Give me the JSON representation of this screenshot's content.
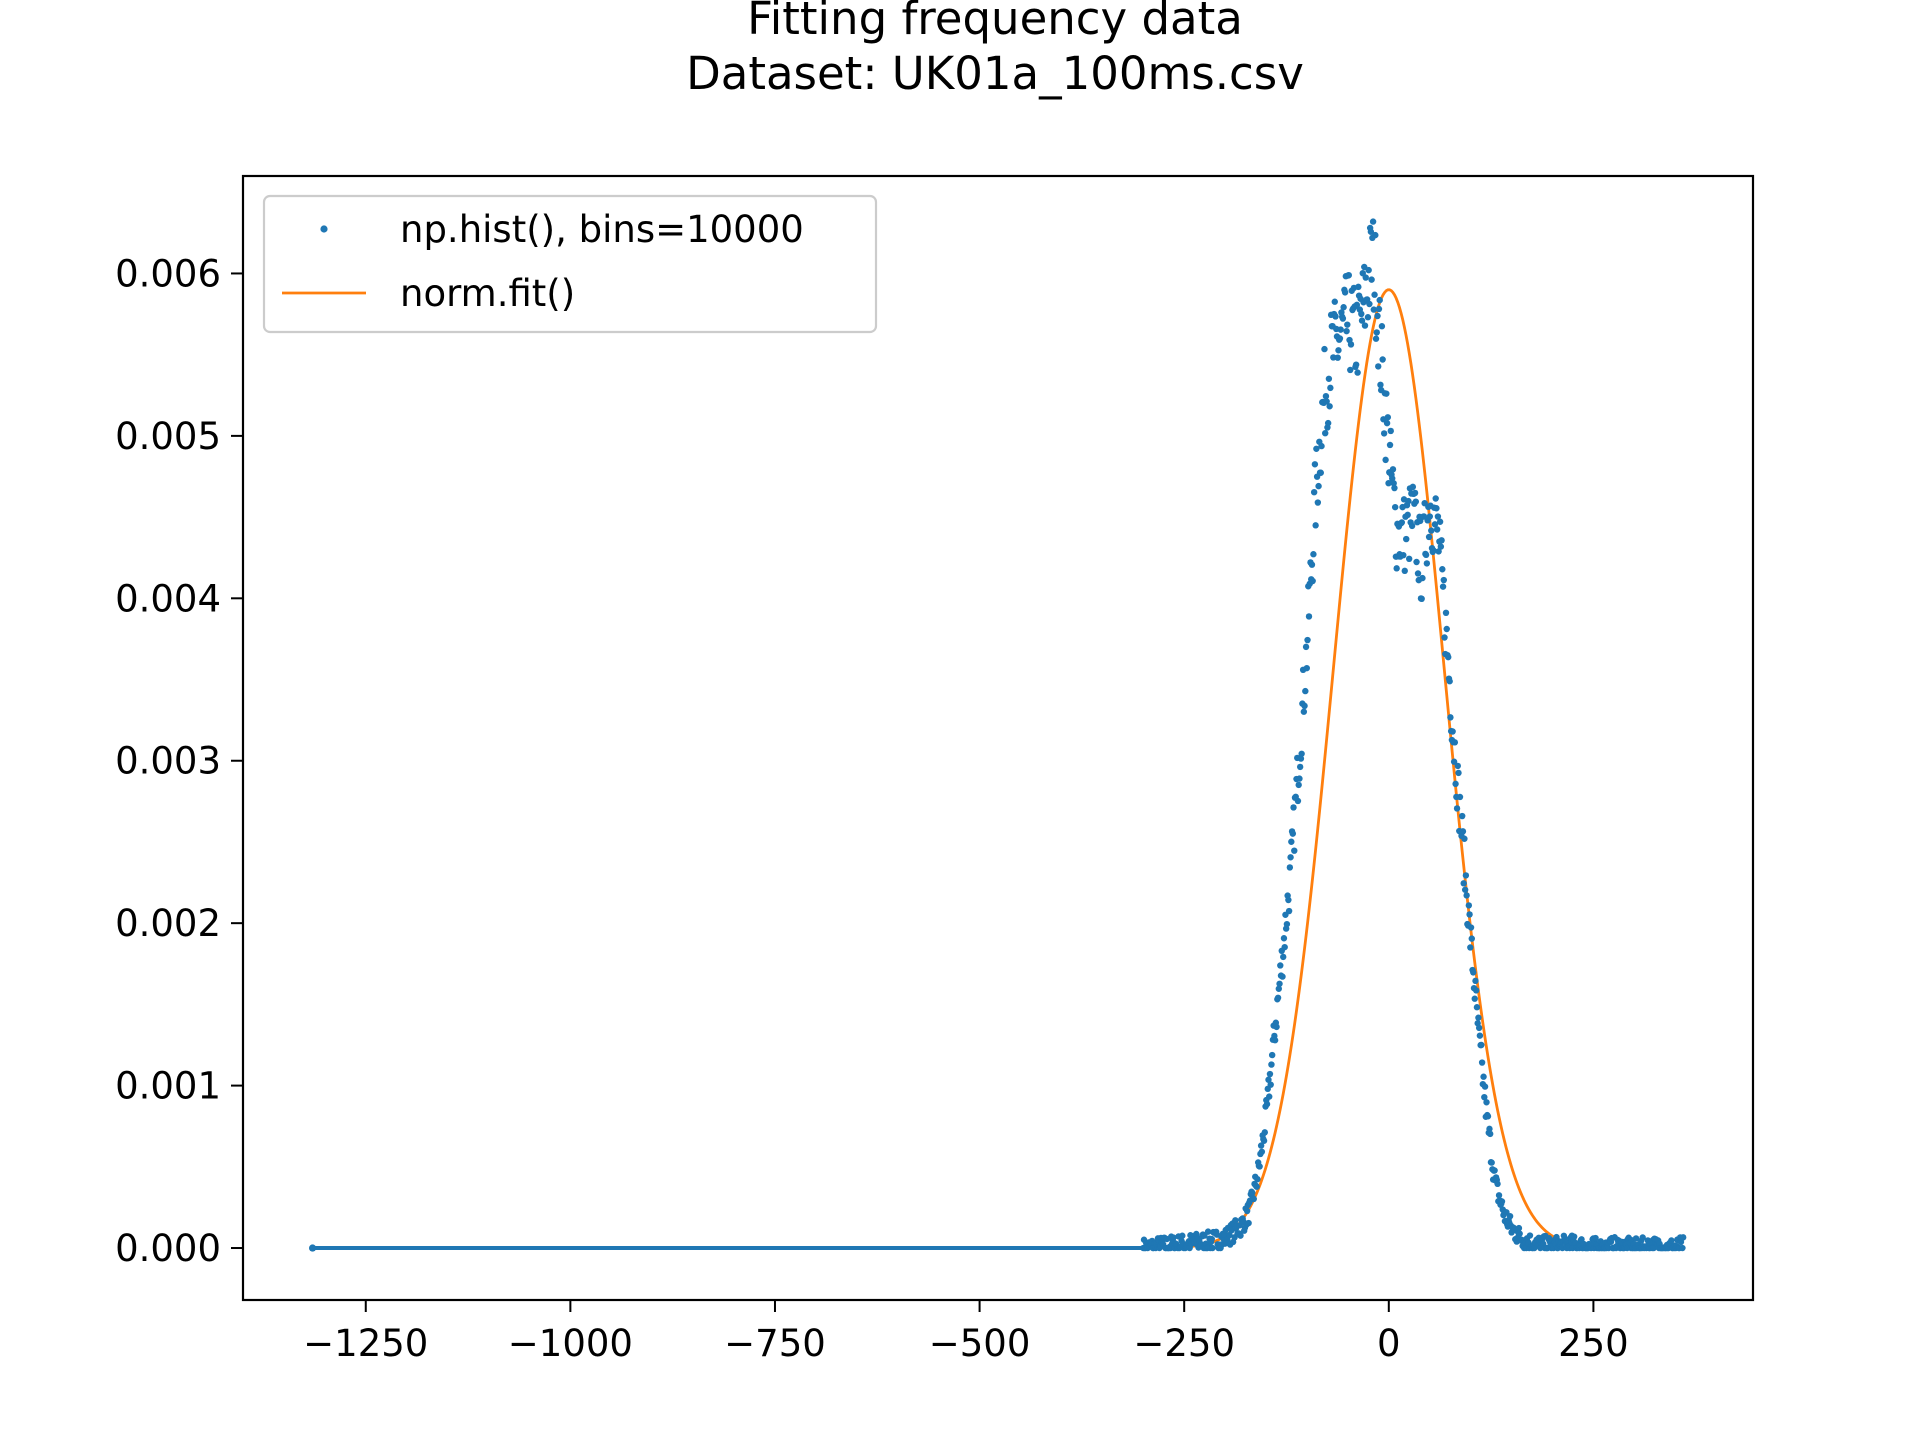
{
  "chart_data": {
    "type": "scatter",
    "title": "Fitting frequency data",
    "subtitle": "Dataset: UK01a_100ms.csv",
    "xlabel": "",
    "ylabel": "",
    "xlim": [
      -1400,
      445
    ],
    "ylim": [
      -0.00032,
      0.0066
    ],
    "xticks": [
      -1250,
      -1000,
      -750,
      -500,
      -250,
      0,
      250
    ],
    "xtick_labels": [
      "−1250",
      "−1000",
      "−750",
      "−500",
      "−250",
      "0",
      "250"
    ],
    "yticks": [
      0.0,
      0.001,
      0.002,
      0.003,
      0.004,
      0.005,
      0.006
    ],
    "ytick_labels": [
      "0.000",
      "0.001",
      "0.002",
      "0.003",
      "0.004",
      "0.005",
      "0.006"
    ],
    "grid": false,
    "legend_position": "top-left",
    "series": [
      {
        "name": "np.hist(), bins=10000",
        "kind": "scatter",
        "color": "#1f77b4",
        "x_range": [
          -1315,
          360
        ],
        "x": [
          -300,
          -280,
          -260,
          -240,
          -220,
          -200,
          -180,
          -170,
          -160,
          -150,
          -140,
          -130,
          -120,
          -110,
          -100,
          -90,
          -80,
          -70,
          -60,
          -50,
          -40,
          -30,
          -20,
          -15,
          -10,
          0,
          10,
          20,
          30,
          40,
          50,
          60,
          70,
          80,
          90,
          100,
          110,
          120,
          130,
          140,
          150,
          160,
          170,
          180,
          200,
          220,
          240,
          260,
          280,
          300,
          320,
          340,
          360
        ],
        "y": [
          0.0,
          1e-05,
          2e-05,
          3e-05,
          4e-05,
          6e-05,
          0.00014,
          0.00023,
          0.00045,
          0.0008,
          0.0013,
          0.0018,
          0.0023,
          0.003,
          0.0037,
          0.0046,
          0.0052,
          0.0055,
          0.0056,
          0.0057,
          0.0056,
          0.0058,
          0.0061,
          0.0059,
          0.0055,
          0.0049,
          0.0044,
          0.0044,
          0.0045,
          0.0042,
          0.0046,
          0.0044,
          0.0038,
          0.0031,
          0.0025,
          0.0019,
          0.0013,
          0.0008,
          0.0004,
          0.00022,
          0.00012,
          7e-05,
          4e-05,
          2e-05,
          1e-05,
          2e-05,
          1e-05,
          0.0,
          1e-05,
          0.0,
          1e-05,
          0.0,
          1e-05
        ]
      },
      {
        "name": "norm.fit()",
        "kind": "line",
        "color": "#ff7f0e",
        "mu": 0,
        "sigma": 67.5,
        "peak": 0.0059,
        "x_range": [
          -1315,
          360
        ]
      }
    ]
  }
}
